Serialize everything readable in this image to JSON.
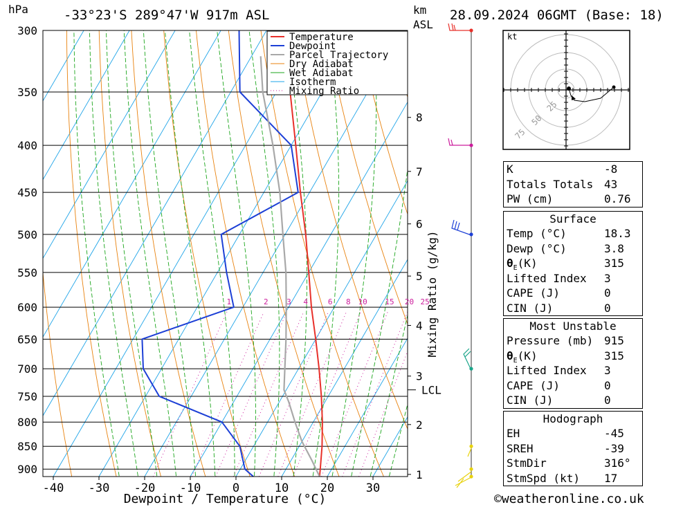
{
  "header": {
    "hpa_unit": "hPa",
    "location": "-33°23'S  289°47'W  917m  ASL",
    "km_unit": "km",
    "asl_unit": "ASL",
    "datetime": "28.09.2024  06GMT  (Base: 18)"
  },
  "footer": {
    "copyright": "©weatheronline.co.uk"
  },
  "legend": [
    {
      "label": "Temperature",
      "color": "#e8302a",
      "style": "solid"
    },
    {
      "label": "Dewpoint",
      "color": "#1c3fd6",
      "style": "solid"
    },
    {
      "label": "Parcel Trajectory",
      "color": "#a8a8a8",
      "style": "solid"
    },
    {
      "label": "Dry Adiabat",
      "color": "#e8820e",
      "style": "solid"
    },
    {
      "label": "Wet Adiabat",
      "color": "#1ba51b",
      "style": "solid"
    },
    {
      "label": "Isotherm",
      "color": "#1ea4e8",
      "style": "solid"
    },
    {
      "label": "Mixing Ratio",
      "color": "#cc1c9c",
      "style": "dotted"
    }
  ],
  "chart_data": {
    "type": "line",
    "title": "-33°23'S 289°47'W 917m ASL  28.09.2024 06GMT (Base: 18)",
    "xlabel": "Dewpoint / Temperature (°C)",
    "ylabel": "hPa",
    "xlim": [
      -42,
      37
    ],
    "pressure_range": [
      300,
      917
    ],
    "skew": true,
    "pressure_levels": [
      300,
      350,
      400,
      450,
      500,
      550,
      600,
      650,
      700,
      750,
      800,
      850,
      900
    ],
    "x_ticks": [
      -40,
      -30,
      -20,
      -10,
      0,
      10,
      20,
      30
    ],
    "height_km_label": "km ASL",
    "height_ticks": [
      {
        "label": "1",
        "p": 912
      },
      {
        "label": "2",
        "p": 805
      },
      {
        "label": "3",
        "p": 713
      },
      {
        "label": "4",
        "p": 628
      },
      {
        "label": "5",
        "p": 555
      },
      {
        "label": "6",
        "p": 487
      },
      {
        "label": "7",
        "p": 427
      },
      {
        "label": "8",
        "p": 373
      }
    ],
    "lcl": {
      "label": "LCL",
      "p": 738
    },
    "mixing_ratio_axis_label": "Mixing Ratio (g/kg)",
    "mixing_ratio_values": [
      1,
      2,
      3,
      4,
      6,
      8,
      10,
      15,
      20,
      25
    ],
    "series": [
      {
        "name": "Temperature",
        "points": [
          {
            "p": 917,
            "t": 18.3
          },
          {
            "p": 900,
            "t": 17.5
          },
          {
            "p": 850,
            "t": 15.0
          },
          {
            "p": 800,
            "t": 12.0
          },
          {
            "p": 750,
            "t": 8.5
          },
          {
            "p": 700,
            "t": 4.5
          },
          {
            "p": 650,
            "t": 0.0
          },
          {
            "p": 600,
            "t": -5.0
          },
          {
            "p": 550,
            "t": -10.0
          },
          {
            "p": 500,
            "t": -15.5
          },
          {
            "p": 450,
            "t": -22.0
          },
          {
            "p": 400,
            "t": -29.0
          },
          {
            "p": 350,
            "t": -37.0
          },
          {
            "p": 300,
            "t": -46.0
          }
        ]
      },
      {
        "name": "Dewpoint",
        "points": [
          {
            "p": 917,
            "t": 3.8
          },
          {
            "p": 900,
            "t": 1.0
          },
          {
            "p": 850,
            "t": -3.0
          },
          {
            "p": 800,
            "t": -10.0
          },
          {
            "p": 750,
            "t": -27.0
          },
          {
            "p": 700,
            "t": -34.0
          },
          {
            "p": 650,
            "t": -38.0
          },
          {
            "p": 600,
            "t": -22.0
          },
          {
            "p": 550,
            "t": -28.0
          },
          {
            "p": 500,
            "t": -34.0
          },
          {
            "p": 450,
            "t": -22.5
          },
          {
            "p": 400,
            "t": -30.0
          },
          {
            "p": 350,
            "t": -48.0
          },
          {
            "p": 300,
            "t": -56.0
          }
        ]
      },
      {
        "name": "Parcel Trajectory",
        "points": [
          {
            "p": 917,
            "t": 18.3
          },
          {
            "p": 880,
            "t": 14.5
          },
          {
            "p": 840,
            "t": 10.0
          },
          {
            "p": 800,
            "t": 6.0
          },
          {
            "p": 760,
            "t": 2.0
          },
          {
            "p": 738,
            "t": -0.5
          },
          {
            "p": 700,
            "t": -3.0
          },
          {
            "p": 650,
            "t": -6.5
          },
          {
            "p": 600,
            "t": -10.5
          },
          {
            "p": 550,
            "t": -15.0
          },
          {
            "p": 500,
            "t": -20.5
          },
          {
            "p": 450,
            "t": -26.5
          },
          {
            "p": 400,
            "t": -34.0
          },
          {
            "p": 350,
            "t": -43.0
          },
          {
            "p": 320,
            "t": -48.0
          }
        ]
      }
    ],
    "wind_barbs_p": [
      300,
      400,
      500,
      700,
      850,
      900,
      917
    ]
  },
  "hodograph": {
    "unit_label": "kt",
    "ring_labels": [
      "25",
      "50",
      "75"
    ]
  },
  "indices": {
    "k_label": "K",
    "k_value": "-8",
    "tt_label": "Totals Totals",
    "tt_value": "43",
    "pw_label": "PW (cm)",
    "pw_value": "0.76"
  },
  "surface": {
    "title": "Surface",
    "temp_label": "Temp (°C)",
    "temp_value": "18.3",
    "dewp_label": "Dewp (°C)",
    "dewp_value": "3.8",
    "theta_symbol": "θ",
    "theta_sub": "E",
    "theta_unit": "(K)",
    "theta_value": "315",
    "li_label": "Lifted Index",
    "li_value": "3",
    "cape_label": "CAPE (J)",
    "cape_value": "0",
    "cin_label": "CIN (J)",
    "cin_value": "0"
  },
  "most_unstable": {
    "title": "Most Unstable",
    "pressure_label": "Pressure (mb)",
    "pressure_value": "915",
    "theta_symbol": "θ",
    "theta_sub": "E",
    "theta_unit": "(K)",
    "theta_value": "315",
    "li_label": "Lifted Index",
    "li_value": "3",
    "cape_label": "CAPE (J)",
    "cape_value": "0",
    "cin_label": "CIN (J)",
    "cin_value": "0"
  },
  "hodograph_table": {
    "title": "Hodograph",
    "eh_label": "EH",
    "eh_value": "-45",
    "sreh_label": "SREH",
    "sreh_value": "-39",
    "stmdir_label": "StmDir",
    "stmdir_value": "316°",
    "stmspd_label": "StmSpd (kt)",
    "stmspd_value": "17"
  }
}
